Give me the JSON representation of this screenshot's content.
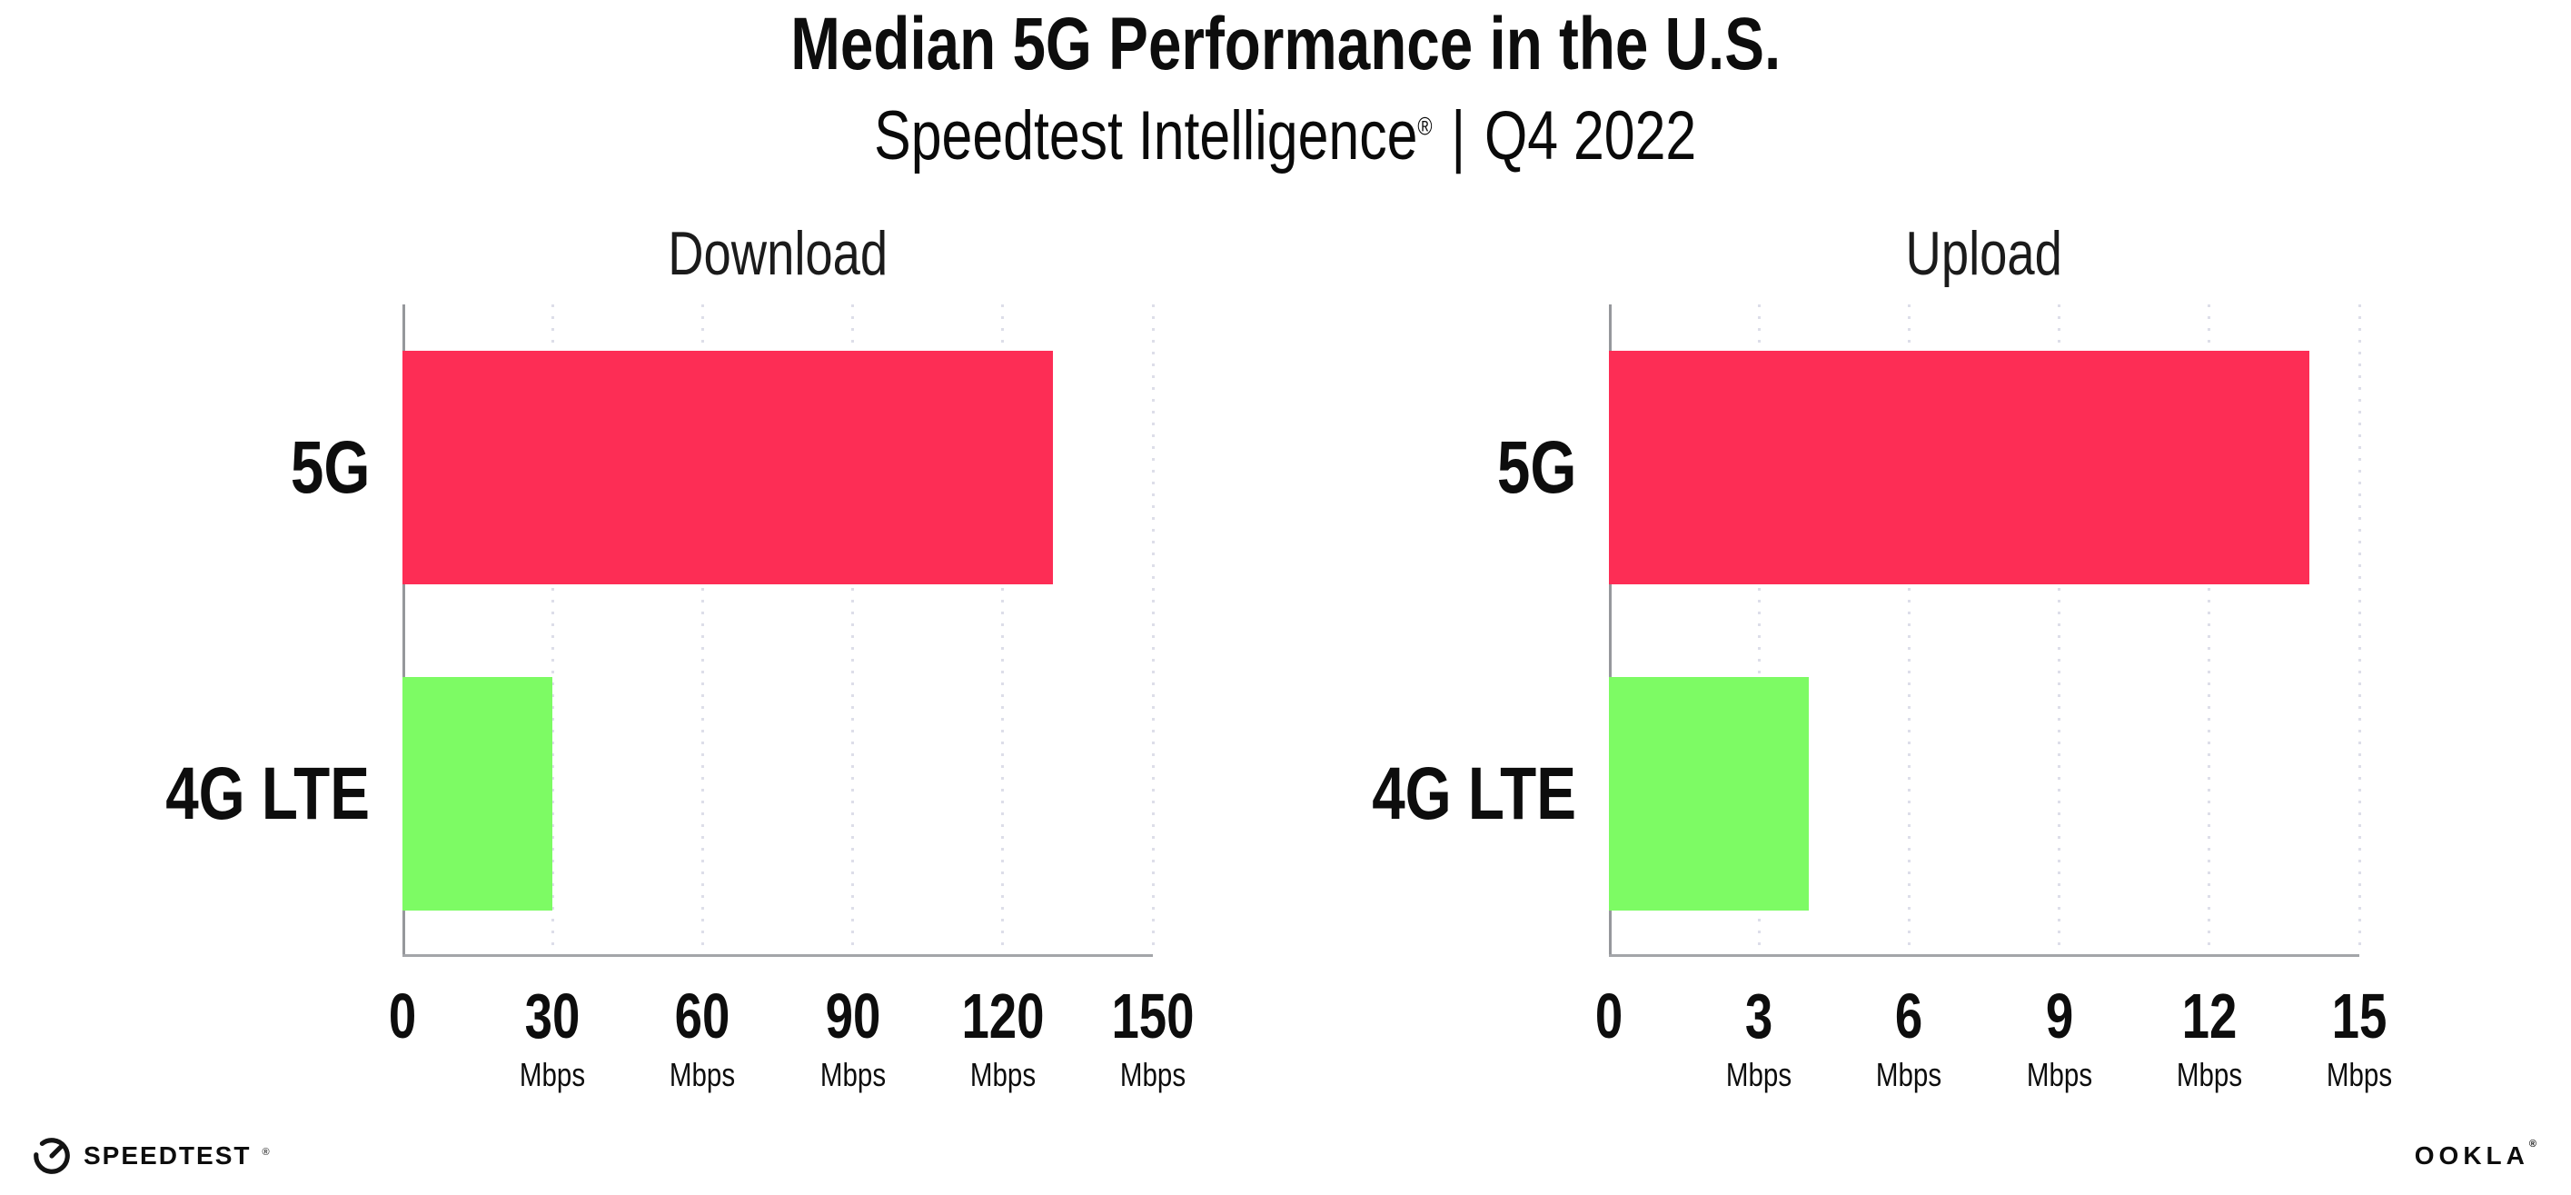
{
  "title": "Median 5G Performance in the U.S.",
  "subtitle": {
    "product": "Speedtest Intelligence",
    "registered": "®",
    "separator": "|",
    "period": "Q4 2022"
  },
  "chart_data": [
    {
      "type": "bar",
      "orientation": "horizontal",
      "title": "Download",
      "categories": [
        "5G",
        "4G LTE"
      ],
      "values": [
        130,
        30
      ],
      "unit": "Mbps",
      "xlim": [
        0,
        150
      ],
      "xticks": [
        0,
        30,
        60,
        90,
        120,
        150
      ],
      "tick_unit_label": "Mbps",
      "bar_colors": [
        "#FD2D55",
        "#7DFB64"
      ],
      "grid": "dotted-vertical",
      "legend": "none"
    },
    {
      "type": "bar",
      "orientation": "horizontal",
      "title": "Upload",
      "categories": [
        "5G",
        "4G LTE"
      ],
      "values": [
        14,
        4
      ],
      "unit": "Mbps",
      "xlim": [
        0,
        15
      ],
      "xticks": [
        0,
        3,
        6,
        9,
        12,
        15
      ],
      "tick_unit_label": "Mbps",
      "bar_colors": [
        "#FD2D55",
        "#7DFB64"
      ],
      "grid": "dotted-vertical",
      "legend": "none"
    }
  ],
  "colors": {
    "bar_5g": "#FD2D55",
    "bar_4g_lte": "#7DFB64",
    "axis": "#9B9DA1",
    "gridline": "#DDDEE9",
    "text": "#0D0D0D",
    "background": "#FFFFFF"
  },
  "footer": {
    "speedtest_logo_text": "SPEEDTEST",
    "speedtest_registered": "®",
    "ookla_logo_text": "OOKLA",
    "ookla_registered": "®"
  }
}
